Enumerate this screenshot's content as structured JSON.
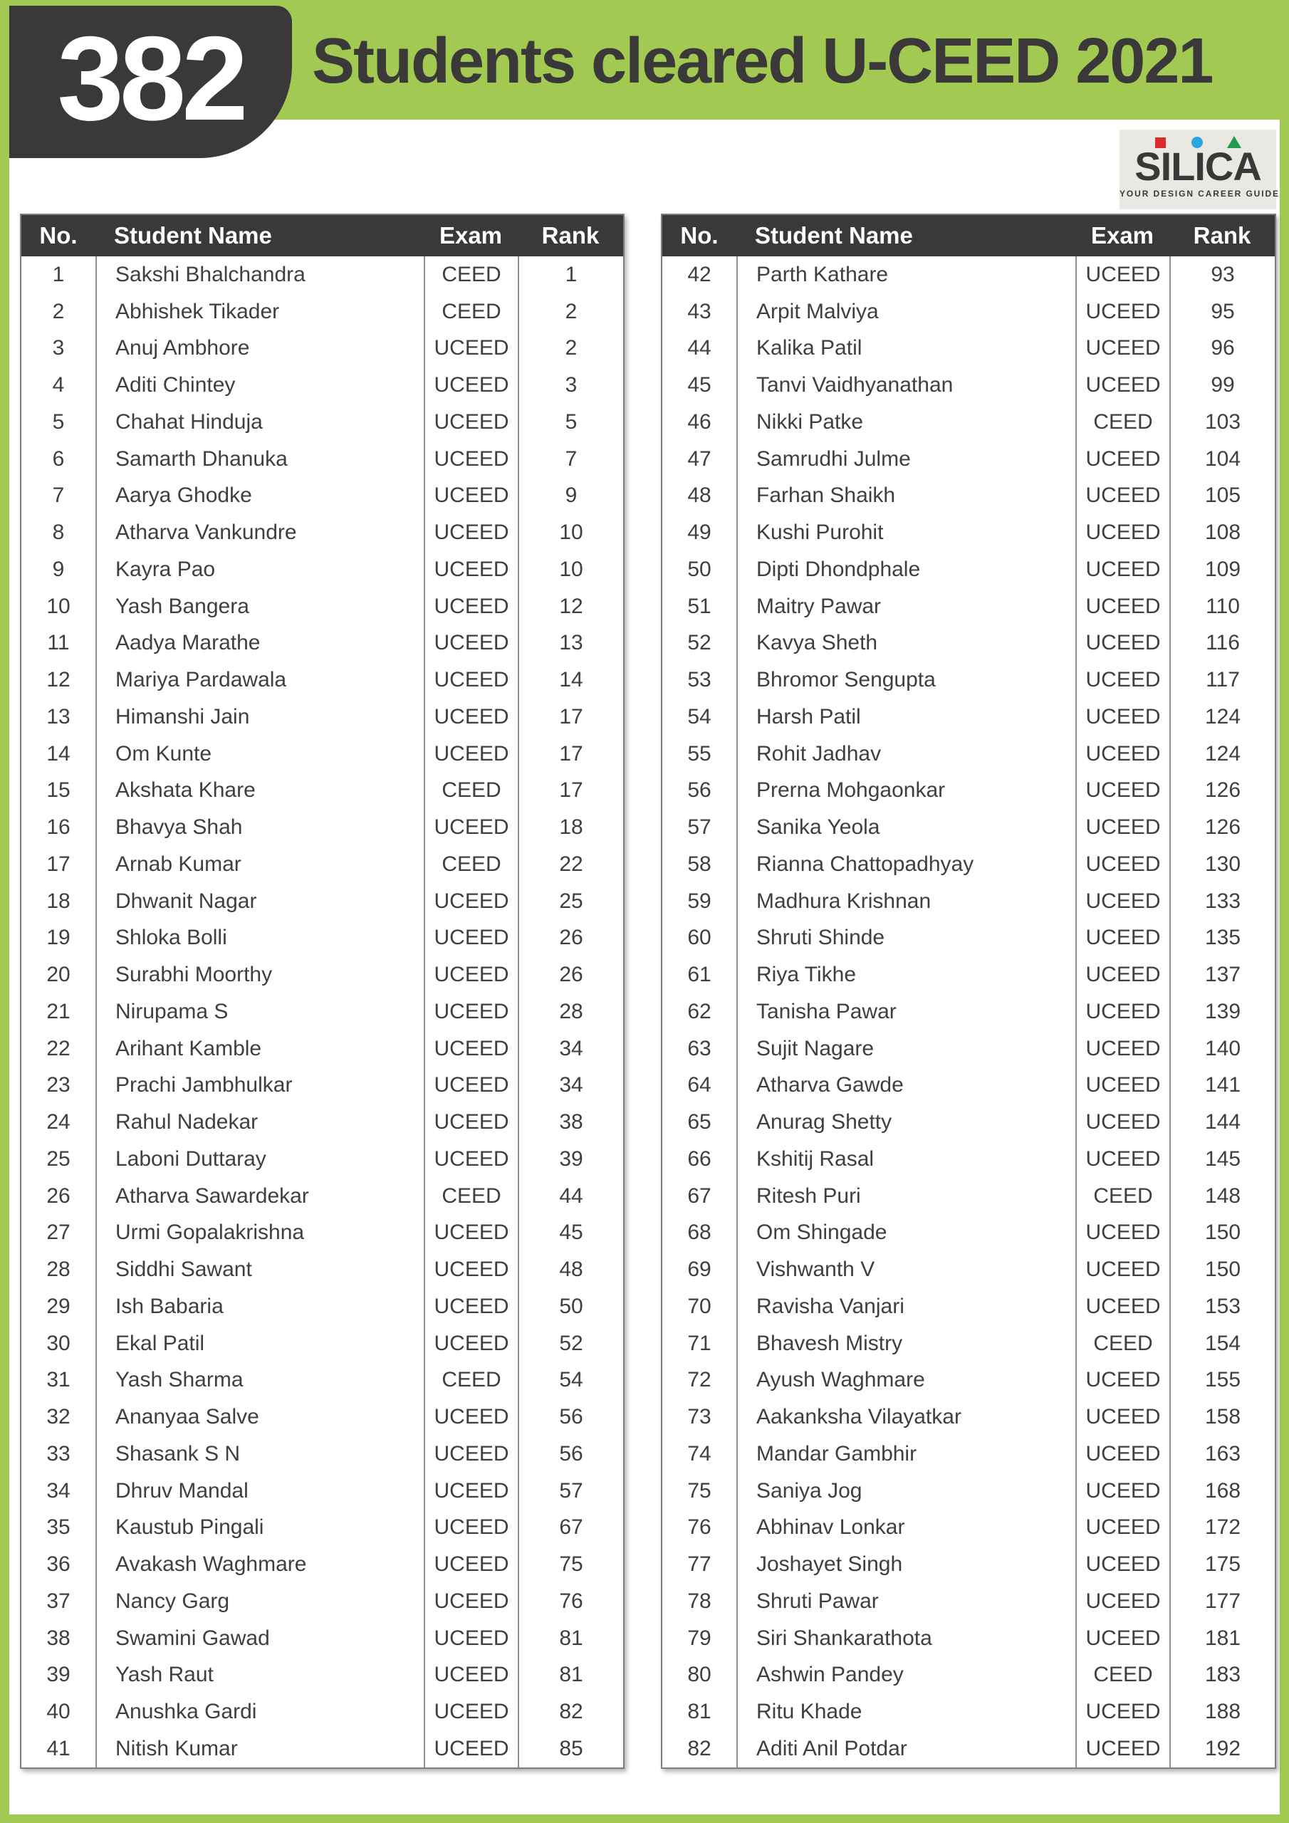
{
  "poster": {
    "count": "382",
    "title": "Students cleared U-CEED 2021"
  },
  "logo": {
    "name": "SILICA",
    "tagline": "YOUR DESIGN CAREER GUIDE"
  },
  "colors": {
    "green": "#a2ca52",
    "dark": "#3b383a",
    "logo_red": "#d92b2b",
    "logo_blue": "#2aa6de",
    "logo_green": "#239a50"
  },
  "table": {
    "columns": [
      "No.",
      "Student Name",
      "Exam",
      "Rank"
    ],
    "left_rows": [
      [
        "1",
        "Sakshi Bhalchandra",
        "CEED",
        "1"
      ],
      [
        "2",
        "Abhishek Tikader",
        "CEED",
        "2"
      ],
      [
        "3",
        "Anuj Ambhore",
        "UCEED",
        "2"
      ],
      [
        "4",
        "Aditi Chintey",
        "UCEED",
        "3"
      ],
      [
        "5",
        "Chahat Hinduja",
        "UCEED",
        "5"
      ],
      [
        "6",
        "Samarth Dhanuka",
        "UCEED",
        "7"
      ],
      [
        "7",
        "Aarya Ghodke",
        "UCEED",
        "9"
      ],
      [
        "8",
        "Atharva Vankundre",
        "UCEED",
        "10"
      ],
      [
        "9",
        "Kayra Pao",
        "UCEED",
        "10"
      ],
      [
        "10",
        "Yash Bangera",
        "UCEED",
        "12"
      ],
      [
        "11",
        "Aadya Marathe",
        "UCEED",
        "13"
      ],
      [
        "12",
        "Mariya Pardawala",
        "UCEED",
        "14"
      ],
      [
        "13",
        "Himanshi Jain",
        "UCEED",
        "17"
      ],
      [
        "14",
        "Om Kunte",
        "UCEED",
        "17"
      ],
      [
        "15",
        "Akshata Khare",
        "CEED",
        "17"
      ],
      [
        "16",
        "Bhavya Shah",
        "UCEED",
        "18"
      ],
      [
        "17",
        "Arnab Kumar",
        "CEED",
        "22"
      ],
      [
        "18",
        "Dhwanit Nagar",
        "UCEED",
        "25"
      ],
      [
        "19",
        "Shloka Bolli",
        "UCEED",
        "26"
      ],
      [
        "20",
        "Surabhi Moorthy",
        "UCEED",
        "26"
      ],
      [
        "21",
        "Nirupama S",
        "UCEED",
        "28"
      ],
      [
        "22",
        "Arihant Kamble",
        "UCEED",
        "34"
      ],
      [
        "23",
        "Prachi Jambhulkar",
        "UCEED",
        "34"
      ],
      [
        "24",
        "Rahul Nadekar",
        "UCEED",
        "38"
      ],
      [
        "25",
        "Laboni Duttaray",
        "UCEED",
        "39"
      ],
      [
        "26",
        "Atharva Sawardekar",
        "CEED",
        "44"
      ],
      [
        "27",
        "Urmi Gopalakrishna",
        "UCEED",
        "45"
      ],
      [
        "28",
        "Siddhi Sawant",
        "UCEED",
        "48"
      ],
      [
        "29",
        "Ish Babaria",
        "UCEED",
        "50"
      ],
      [
        "30",
        "Ekal Patil",
        "UCEED",
        "52"
      ],
      [
        "31",
        "Yash Sharma",
        "CEED",
        "54"
      ],
      [
        "32",
        "Ananyaa Salve",
        "UCEED",
        "56"
      ],
      [
        "33",
        "Shasank S N",
        "UCEED",
        "56"
      ],
      [
        "34",
        "Dhruv Mandal",
        "UCEED",
        "57"
      ],
      [
        "35",
        "Kaustub Pingali",
        "UCEED",
        "67"
      ],
      [
        "36",
        "Avakash Waghmare",
        "UCEED",
        "75"
      ],
      [
        "37",
        "Nancy Garg",
        "UCEED",
        "76"
      ],
      [
        "38",
        "Swamini Gawad",
        "UCEED",
        "81"
      ],
      [
        "39",
        "Yash Raut",
        "UCEED",
        "81"
      ],
      [
        "40",
        "Anushka Gardi",
        "UCEED",
        "82"
      ],
      [
        "41",
        "Nitish Kumar",
        "UCEED",
        "85"
      ]
    ],
    "right_rows": [
      [
        "42",
        "Parth Kathare",
        "UCEED",
        "93"
      ],
      [
        "43",
        "Arpit Malviya",
        "UCEED",
        "95"
      ],
      [
        "44",
        "Kalika Patil",
        "UCEED",
        "96"
      ],
      [
        "45",
        "Tanvi Vaidhyanathan",
        "UCEED",
        "99"
      ],
      [
        "46",
        "Nikki Patke",
        "CEED",
        "103"
      ],
      [
        "47",
        "Samrudhi Julme",
        "UCEED",
        "104"
      ],
      [
        "48",
        "Farhan Shaikh",
        "UCEED",
        "105"
      ],
      [
        "49",
        "Kushi Purohit",
        "UCEED",
        "108"
      ],
      [
        "50",
        "Dipti Dhondphale",
        "UCEED",
        "109"
      ],
      [
        "51",
        "Maitry Pawar",
        "UCEED",
        "110"
      ],
      [
        "52",
        "Kavya Sheth",
        "UCEED",
        "116"
      ],
      [
        "53",
        "Bhromor Sengupta",
        "UCEED",
        "117"
      ],
      [
        "54",
        "Harsh Patil",
        "UCEED",
        "124"
      ],
      [
        "55",
        "Rohit Jadhav",
        "UCEED",
        "124"
      ],
      [
        "56",
        "Prerna Mohgaonkar",
        "UCEED",
        "126"
      ],
      [
        "57",
        "Sanika Yeola",
        "UCEED",
        "126"
      ],
      [
        "58",
        "Rianna Chattopadhyay",
        "UCEED",
        "130"
      ],
      [
        "59",
        "Madhura Krishnan",
        "UCEED",
        "133"
      ],
      [
        "60",
        "Shruti Shinde",
        "UCEED",
        "135"
      ],
      [
        "61",
        "Riya Tikhe",
        "UCEED",
        "137"
      ],
      [
        "62",
        "Tanisha Pawar",
        "UCEED",
        "139"
      ],
      [
        "63",
        "Sujit Nagare",
        "UCEED",
        "140"
      ],
      [
        "64",
        "Atharva Gawde",
        "UCEED",
        "141"
      ],
      [
        "65",
        "Anurag Shetty",
        "UCEED",
        "144"
      ],
      [
        "66",
        "Kshitij Rasal",
        "UCEED",
        "145"
      ],
      [
        "67",
        "Ritesh Puri",
        "CEED",
        "148"
      ],
      [
        "68",
        "Om Shingade",
        "UCEED",
        "150"
      ],
      [
        "69",
        "Vishwanth V",
        "UCEED",
        "150"
      ],
      [
        "70",
        "Ravisha Vanjari",
        "UCEED",
        "153"
      ],
      [
        "71",
        "Bhavesh Mistry",
        "CEED",
        "154"
      ],
      [
        "72",
        "Ayush Waghmare",
        "UCEED",
        "155"
      ],
      [
        "73",
        "Aakanksha Vilayatkar",
        "UCEED",
        "158"
      ],
      [
        "74",
        "Mandar Gambhir",
        "UCEED",
        "163"
      ],
      [
        "75",
        "Saniya Jog",
        "UCEED",
        "168"
      ],
      [
        "76",
        "Abhinav Lonkar",
        "UCEED",
        "172"
      ],
      [
        "77",
        "Joshayet Singh",
        "UCEED",
        "175"
      ],
      [
        "78",
        "Shruti Pawar",
        "UCEED",
        "177"
      ],
      [
        "79",
        "Siri Shankarathota",
        "UCEED",
        "181"
      ],
      [
        "80",
        "Ashwin Pandey",
        "CEED",
        "183"
      ],
      [
        "81",
        "Ritu Khade",
        "UCEED",
        "188"
      ],
      [
        "82",
        "Aditi Anil Potdar",
        "UCEED",
        "192"
      ]
    ]
  }
}
